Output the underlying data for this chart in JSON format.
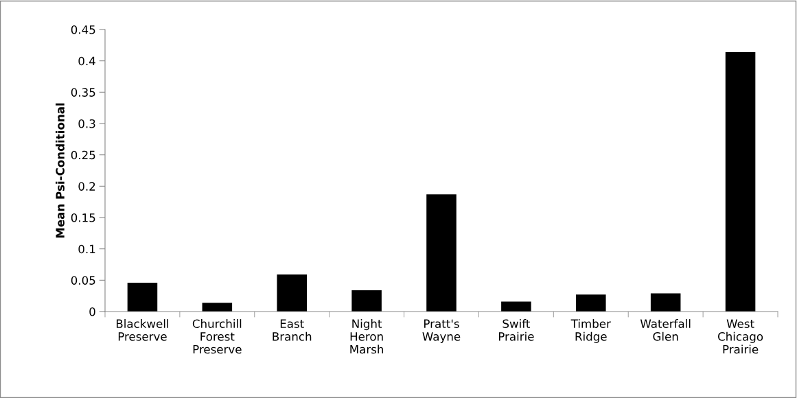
{
  "chart_data": {
    "type": "bar",
    "ylabel": "Mean Psi-Conditional",
    "categories": [
      "Blackwell\nPreserve",
      "Churchill\nForest\nPreserve",
      "East\nBranch",
      "Night\nHeron\nMarsh",
      "Pratt's\nWayne",
      "Swift\nPrairie",
      "Timber\nRidge",
      "Waterfall\nGlen",
      "West\nChicago\nPrairie"
    ],
    "values": [
      0.046,
      0.014,
      0.059,
      0.034,
      0.187,
      0.016,
      0.027,
      0.029,
      0.414
    ],
    "color": "#000000",
    "ylim": [
      0,
      0.45
    ],
    "yticks": [
      {
        "value": 0,
        "label": "0"
      },
      0.05,
      0.1,
      0.15,
      0.2,
      0.25,
      0.3,
      0.35,
      0.4,
      0.45
    ],
    "grid": false
  }
}
